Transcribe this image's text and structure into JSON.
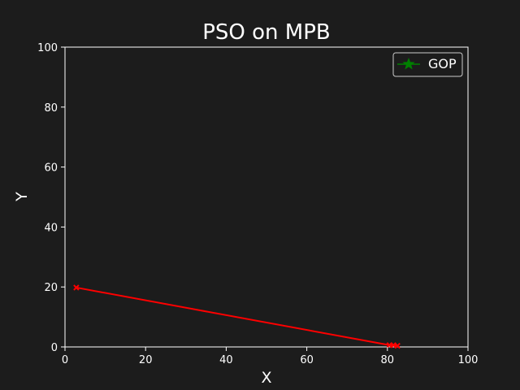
{
  "chart_data": {
    "type": "line",
    "title": "PSO on MPB",
    "xlabel": "X",
    "ylabel": "Y",
    "xlim": [
      0,
      100
    ],
    "ylim": [
      0,
      100
    ],
    "xticks": [
      0,
      20,
      40,
      60,
      80,
      100
    ],
    "yticks": [
      0,
      20,
      40,
      60,
      80,
      100
    ],
    "grid": false,
    "legend_placement": "top-right",
    "colors": {
      "background": "#1c1c1c",
      "axes": "#ffffff",
      "trajectory": "#ff0000",
      "gop": "#008000"
    },
    "series": [
      {
        "role": "trajectory",
        "marker": "x",
        "color": "#ff0000",
        "x": [
          2.8,
          80.5,
          81.5,
          82.5
        ],
        "y": [
          19.8,
          0.6,
          0.6,
          0.4
        ]
      },
      {
        "role": "gop",
        "name": "GOP",
        "marker": "star",
        "color": "#008000",
        "x": [],
        "y": []
      }
    ]
  }
}
